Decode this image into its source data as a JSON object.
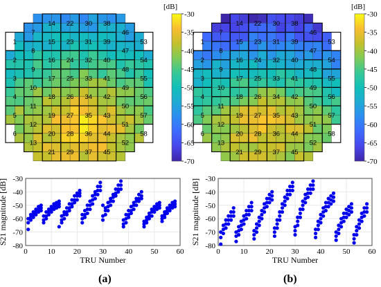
{
  "figure": {
    "panel_labels": [
      "(a)",
      "(b)"
    ]
  },
  "colorbar": {
    "unit": "[dB]",
    "ticks": [
      -30,
      -35,
      -40,
      -45,
      -50,
      -55,
      -60,
      -65,
      -70
    ],
    "range": [
      -70,
      -30
    ]
  },
  "tile_labels": {
    "columns": [
      [
        1,
        2,
        3,
        4,
        5,
        6
      ],
      [
        7,
        8,
        9,
        10,
        11,
        12,
        13
      ],
      [
        14,
        15,
        16,
        17,
        18,
        19,
        20,
        21
      ],
      [
        22,
        23,
        24,
        25,
        26,
        27,
        28,
        29
      ],
      [
        30,
        31,
        32,
        33,
        34,
        35,
        36,
        37
      ],
      [
        38,
        39,
        40,
        41,
        42,
        43,
        44,
        45
      ],
      [
        46,
        47,
        48,
        49,
        50,
        51,
        52
      ],
      [
        53,
        54,
        55,
        56,
        57,
        58
      ]
    ]
  },
  "chart_data": [
    {
      "type": "heatmap",
      "panel": "(a)",
      "colorbar_label": "[dB]",
      "zlim": [
        -70,
        -30
      ],
      "colormap": "parula",
      "grid": "circular aperture of 16 x 16 elements; tiles numbered 1-58",
      "trend": "levels rise from about -65 dB at the top edge to about -32 dB near tiles 27-29, 35-37; background mostly -45 to -55 dB"
    },
    {
      "type": "heatmap",
      "panel": "(b)",
      "colorbar_label": "[dB]",
      "zlim": [
        -70,
        -30
      ],
      "colormap": "parula",
      "trend": "lower overall levels than (a): about -70 to -62 dB along the top, about -32 dB near tiles 27-29, 35-37"
    },
    {
      "type": "scatter",
      "panel": "(a)",
      "xlabel": "TRU Number",
      "ylabel": "S21 magnitude [dB]",
      "xlim": [
        0,
        60
      ],
      "ylim": [
        -80,
        -30
      ],
      "xticks": [
        0,
        10,
        20,
        30,
        40,
        50,
        60
      ],
      "yticks": [
        -30,
        -40,
        -50,
        -60,
        -70,
        -80
      ],
      "grid": true,
      "color": "#0000ee",
      "points_tru": [
        1,
        1,
        1,
        2,
        2,
        2,
        3,
        3,
        3,
        4,
        4,
        4,
        5,
        5,
        5,
        6,
        6,
        6,
        7,
        7,
        7,
        8,
        8,
        8,
        9,
        9,
        9,
        10,
        10,
        10,
        11,
        11,
        11,
        12,
        12,
        12,
        13,
        13,
        13,
        13,
        14,
        14,
        14,
        15,
        15,
        15,
        16,
        16,
        16,
        17,
        17,
        17,
        18,
        18,
        18,
        19,
        19,
        19,
        20,
        20,
        20,
        21,
        21,
        21,
        22,
        22,
        22,
        23,
        23,
        23,
        24,
        24,
        24,
        25,
        25,
        25,
        26,
        26,
        26,
        27,
        27,
        27,
        28,
        28,
        28,
        29,
        29,
        29,
        30,
        30,
        30,
        31,
        31,
        31,
        32,
        32,
        32,
        33,
        33,
        33,
        34,
        34,
        34,
        35,
        35,
        35,
        36,
        36,
        36,
        37,
        37,
        37,
        38,
        38,
        38,
        39,
        39,
        39,
        40,
        40,
        40,
        41,
        41,
        41,
        42,
        42,
        42,
        43,
        43,
        43,
        44,
        44,
        44,
        45,
        45,
        45,
        46,
        46,
        46,
        47,
        47,
        47,
        48,
        48,
        48,
        49,
        49,
        49,
        50,
        50,
        50,
        51,
        51,
        51,
        52,
        52,
        52,
        53,
        53,
        53,
        54,
        54,
        54,
        55,
        55,
        55,
        56,
        56,
        56,
        57,
        57,
        57,
        58,
        58,
        58
      ],
      "points_db": [
        -60,
        -63,
        -68,
        -57,
        -59,
        -61,
        -55,
        -57,
        -59,
        -53,
        -55,
        -57,
        -51,
        -53,
        -55,
        -50,
        -52,
        -54,
        -58,
        -61,
        -63,
        -55,
        -58,
        -60,
        -53,
        -55,
        -57,
        -51,
        -53,
        -55,
        -49,
        -51,
        -53,
        -48,
        -50,
        -52,
        -47,
        -49,
        -51,
        -66,
        -58,
        -61,
        -63,
        -55,
        -57,
        -60,
        -52,
        -55,
        -57,
        -49,
        -52,
        -54,
        -46,
        -49,
        -51,
        -43,
        -46,
        -48,
        -41,
        -43,
        -46,
        -39,
        -41,
        -43,
        -57,
        -60,
        -63,
        -54,
        -57,
        -59,
        -50,
        -53,
        -56,
        -47,
        -50,
        -53,
        -43,
        -46,
        -49,
        -40,
        -42,
        -45,
        -36,
        -39,
        -42,
        -33,
        -36,
        -39,
        -50,
        -58,
        -61,
        -52,
        -54,
        -57,
        -48,
        -51,
        -54,
        -45,
        -47,
        -50,
        -42,
        -44,
        -47,
        -38,
        -41,
        -43,
        -35,
        -38,
        -40,
        -32,
        -35,
        -38,
        -61,
        -64,
        -66,
        -57,
        -60,
        -63,
        -54,
        -57,
        -59,
        -51,
        -54,
        -56,
        -48,
        -50,
        -53,
        -45,
        -47,
        -50,
        -42,
        -45,
        -47,
        -40,
        -43,
        -45,
        -62,
        -64,
        -66,
        -59,
        -61,
        -63,
        -56,
        -58,
        -60,
        -53,
        -55,
        -58,
        -51,
        -53,
        -55,
        -49,
        -51,
        -53,
        -48,
        -50,
        -52,
        -58,
        -60,
        -62,
        -55,
        -57,
        -59,
        -52,
        -54,
        -56,
        -50,
        -52,
        -54,
        -48,
        -50,
        -52,
        -47,
        -49,
        -51
      ]
    },
    {
      "type": "scatter",
      "panel": "(b)",
      "xlabel": "TRU Number",
      "ylabel": "S21 magnitude [dB]",
      "xlim": [
        0,
        60
      ],
      "ylim": [
        -80,
        -30
      ],
      "xticks": [
        0,
        10,
        20,
        30,
        40,
        50,
        60
      ],
      "yticks": [
        -30,
        -40,
        -50,
        -60,
        -70,
        -80
      ],
      "grid": true,
      "color": "#0000ee",
      "points_tru": [
        1,
        1,
        1,
        2,
        2,
        2,
        3,
        3,
        3,
        4,
        4,
        4,
        5,
        5,
        5,
        6,
        6,
        6,
        7,
        7,
        7,
        8,
        8,
        8,
        9,
        9,
        9,
        10,
        10,
        10,
        11,
        11,
        11,
        12,
        12,
        12,
        13,
        13,
        13,
        14,
        14,
        14,
        15,
        15,
        15,
        16,
        16,
        16,
        17,
        17,
        17,
        18,
        18,
        18,
        19,
        19,
        19,
        20,
        20,
        20,
        21,
        21,
        21,
        22,
        22,
        22,
        23,
        23,
        23,
        24,
        24,
        24,
        25,
        25,
        25,
        26,
        26,
        26,
        27,
        27,
        27,
        28,
        28,
        28,
        29,
        29,
        29,
        30,
        30,
        30,
        31,
        31,
        31,
        32,
        32,
        32,
        33,
        33,
        33,
        34,
        34,
        34,
        35,
        35,
        35,
        36,
        36,
        36,
        37,
        37,
        37,
        38,
        38,
        38,
        39,
        39,
        39,
        40,
        40,
        40,
        41,
        41,
        41,
        42,
        42,
        42,
        43,
        43,
        43,
        44,
        44,
        44,
        45,
        45,
        45,
        46,
        46,
        46,
        47,
        47,
        47,
        48,
        48,
        48,
        49,
        49,
        49,
        50,
        50,
        50,
        51,
        51,
        51,
        52,
        52,
        52,
        53,
        53,
        53,
        54,
        54,
        54,
        55,
        55,
        55,
        56,
        56,
        56,
        57,
        57,
        57,
        58,
        58,
        58
      ],
      "points_db": [
        -70,
        -74,
        -79,
        -65,
        -68,
        -71,
        -61,
        -64,
        -67,
        -58,
        -61,
        -64,
        -55,
        -58,
        -61,
        -52,
        -55,
        -58,
        -70,
        -73,
        -77,
        -66,
        -69,
        -72,
        -62,
        -65,
        -68,
        -58,
        -61,
        -64,
        -54,
        -57,
        -60,
        -51,
        -54,
        -57,
        -48,
        -51,
        -54,
        -69,
        -72,
        -75,
        -64,
        -67,
        -70,
        -59,
        -62,
        -65,
        -54,
        -57,
        -60,
        -49,
        -52,
        -55,
        -45,
        -48,
        -51,
        -42,
        -45,
        -48,
        -40,
        -43,
        -46,
        -67,
        -70,
        -73,
        -61,
        -64,
        -67,
        -55,
        -58,
        -61,
        -49,
        -52,
        -55,
        -44,
        -47,
        -50,
        -39,
        -42,
        -45,
        -36,
        -39,
        -42,
        -33,
        -36,
        -39,
        -66,
        -69,
        -72,
        -59,
        -62,
        -65,
        -53,
        -56,
        -59,
        -47,
        -50,
        -53,
        -42,
        -45,
        -48,
        -38,
        -41,
        -44,
        -35,
        -38,
        -41,
        -32,
        -35,
        -38,
        -68,
        -71,
        -74,
        -62,
        -65,
        -68,
        -57,
        -60,
        -63,
        -52,
        -55,
        -58,
        -48,
        -51,
        -54,
        -45,
        -48,
        -51,
        -43,
        -46,
        -49,
        -41,
        -44,
        -47,
        -70,
        -73,
        -76,
        -65,
        -68,
        -71,
        -60,
        -63,
        -66,
        -56,
        -59,
        -62,
        -53,
        -56,
        -59,
        -51,
        -54,
        -57,
        -49,
        -52,
        -55,
        -72,
        -75,
        -78,
        -66,
        -69,
        -72,
        -61,
        -64,
        -67,
        -56,
        -59,
        -62,
        -52,
        -55,
        -58,
        -49,
        -52,
        -55
      ]
    }
  ]
}
